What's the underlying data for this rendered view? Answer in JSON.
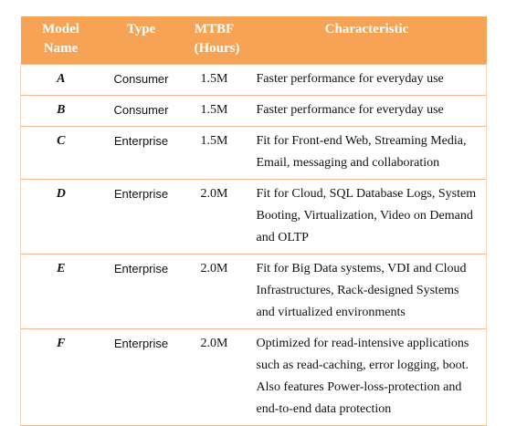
{
  "table": {
    "header": [
      "Model Name",
      "Type",
      "MTBF (Hours)",
      "Characteristic"
    ],
    "rows": [
      [
        "A",
        "Consumer",
        "1.5M",
        "Faster performance for everyday use"
      ],
      [
        "B",
        "Consumer",
        "1.5M",
        "Faster performance for everyday use"
      ],
      [
        "C",
        "Enterprise",
        "1.5M",
        "Fit for Front-end Web, Streaming Media, Email, messaging and collaboration"
      ],
      [
        "D",
        "Enterprise",
        "2.0M",
        "Fit for Cloud, SQL Database Logs, System Booting, Virtualization, Video on Demand and OLTP"
      ],
      [
        "E",
        "Enterprise",
        "2.0M",
        "Fit for Big Data systems, VDI and Cloud Infrastructures, Rack-designed Systems and virtualized environments"
      ],
      [
        "F",
        "Enterprise",
        "2.0M",
        "Optimized for read-intensive applications such as read-caching, error logging, boot. Also features Power-loss-protection and end-to-end data protection"
      ]
    ]
  }
}
